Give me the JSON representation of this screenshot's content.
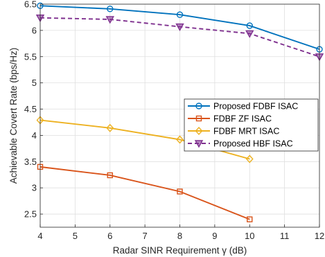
{
  "chart_data": {
    "type": "line",
    "title": "",
    "xlabel": "Radar SINR Requirement γ (dB)",
    "ylabel": "Achievable Covert Rate (bps/Hz)",
    "xlim": [
      4,
      12
    ],
    "ylim": [
      2.25,
      6.5
    ],
    "xticks": [
      4,
      5,
      6,
      7,
      8,
      9,
      10,
      11,
      12
    ],
    "yticks": [
      2.5,
      3,
      3.5,
      4,
      4.5,
      5,
      5.5,
      6,
      6.5
    ],
    "grid": true,
    "legend_position": "right",
    "series": [
      {
        "name": "Proposed FDBF ISAC",
        "color": "#0072bd",
        "marker": "circle",
        "line": "solid",
        "x": [
          4,
          6,
          8,
          10,
          12
        ],
        "y": [
          6.47,
          6.41,
          6.3,
          6.09,
          5.64
        ]
      },
      {
        "name": "FDBF ZF ISAC",
        "color": "#d95319",
        "marker": "square",
        "line": "solid",
        "x": [
          4,
          6,
          8,
          10
        ],
        "y": [
          3.4,
          3.24,
          2.93,
          2.4
        ]
      },
      {
        "name": "FDBF MRT ISAC",
        "color": "#edb120",
        "marker": "diamond",
        "line": "solid",
        "x": [
          4,
          6,
          8,
          10
        ],
        "y": [
          4.29,
          4.14,
          3.92,
          3.55
        ]
      },
      {
        "name": "Proposed HBF ISAC",
        "color": "#7e2f8e",
        "marker": "triangle-down",
        "line": "dashed",
        "x": [
          4,
          6,
          8,
          10,
          12
        ],
        "y": [
          6.24,
          6.21,
          6.07,
          5.94,
          5.5
        ]
      }
    ]
  }
}
